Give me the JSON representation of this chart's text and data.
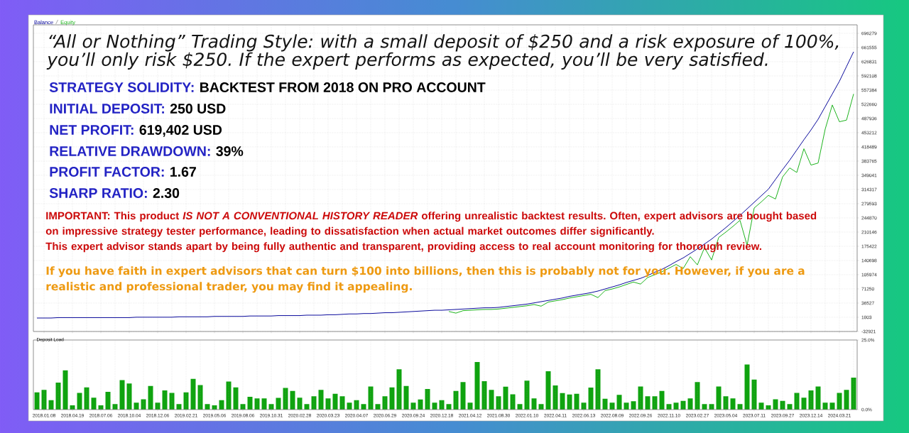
{
  "chart_data": [
    {
      "type": "line",
      "legend": "top left",
      "grid": true,
      "tick_labels": "y",
      "categories": [
        null,
        "2018.01.08",
        null,
        null,
        null,
        "2018.04.19",
        null,
        null,
        null,
        "2018.07.06",
        null,
        null,
        null,
        "2018.10.04",
        null,
        null,
        null,
        "2018.12.06",
        null,
        null,
        null,
        "2019.02.21",
        null,
        null,
        null,
        "2019.05.06",
        null,
        null,
        null,
        "2019.08.06",
        null,
        null,
        null,
        "2019.10.31",
        null,
        null,
        null,
        "2020.02.28",
        null,
        null,
        null,
        "2020.03.23",
        null,
        null,
        null,
        "2020.04.07",
        null,
        null,
        null,
        "2020.06.29",
        null,
        null,
        null,
        "2020.09.24",
        null,
        null,
        null,
        "2020.12.18",
        null,
        null,
        null,
        "2021.04.12",
        null,
        null,
        null,
        "2021.08.30",
        null,
        null,
        null,
        "2022.01.10",
        null,
        null,
        null,
        "2022.04.11",
        null,
        null,
        null,
        "2022.06.13",
        null,
        null,
        null,
        "2022.08.09",
        null,
        null,
        null,
        "2022.09.26",
        null,
        null,
        null,
        "2022.11.10",
        null,
        null,
        null,
        "2023.02.27",
        null,
        null,
        null,
        "2023.05.04",
        null,
        null,
        null,
        "2023.07.11",
        null,
        null,
        null,
        "2023.09.27",
        null,
        null,
        null,
        "2023.12.14",
        null,
        null,
        null,
        "2024.03.21",
        null,
        null
      ],
      "ylim": [
        -32921,
        717000
      ],
      "yticks": [
        696279,
        661555,
        626831,
        592108,
        557384,
        522660,
        487936,
        453212,
        418489,
        383765,
        349041,
        314317,
        279593,
        244870,
        210146,
        175422,
        140698,
        105974,
        71250,
        36527,
        1803,
        -32921
      ],
      "series": [
        {
          "name": "Balance",
          "color": "#0a0a9c",
          "values": [
            0,
            0,
            0,
            1000,
            1000,
            1000,
            1000,
            1000,
            1000,
            1000,
            1000,
            1000,
            1000,
            1000,
            2000,
            2000,
            2000,
            2000,
            2000,
            2000,
            3000,
            3000,
            3000,
            3000,
            3000,
            4000,
            4000,
            4000,
            4000,
            4000,
            5000,
            5000,
            5000,
            5000,
            6000,
            6000,
            6000,
            6000,
            7000,
            7000,
            7000,
            8000,
            8000,
            9000,
            10000,
            10000,
            11000,
            11000,
            12000,
            13000,
            13000,
            14000,
            15000,
            16000,
            17000,
            18000,
            19000,
            19000,
            20000,
            21000,
            22000,
            23000,
            24000,
            25000,
            25000,
            26000,
            28000,
            30000,
            32000,
            34000,
            37000,
            40000,
            43000,
            46000,
            49000,
            53000,
            56000,
            59000,
            62000,
            66000,
            71000,
            76000,
            81000,
            87000,
            92000,
            97000,
            104000,
            112000,
            119000,
            128000,
            138000,
            147000,
            158000,
            169000,
            181000,
            193000,
            207000,
            221000,
            236000,
            251000,
            267000,
            283000,
            299000,
            315000,
            339000,
            363000,
            386000,
            411000,
            436000,
            460000,
            486000,
            517000,
            548000,
            579000,
            615000,
            651000
          ]
        },
        {
          "name": "Equity",
          "color": "#1db31d",
          "values": [
            null,
            null,
            null,
            null,
            null,
            null,
            null,
            null,
            null,
            null,
            null,
            null,
            null,
            null,
            null,
            null,
            null,
            null,
            null,
            null,
            null,
            null,
            null,
            null,
            null,
            null,
            null,
            null,
            null,
            null,
            null,
            null,
            null,
            null,
            null,
            null,
            null,
            null,
            null,
            null,
            null,
            null,
            null,
            null,
            null,
            null,
            null,
            null,
            null,
            null,
            null,
            null,
            null,
            null,
            null,
            null,
            null,
            null,
            16000,
            12000,
            18000,
            19000,
            20000,
            21000,
            21000,
            22000,
            24000,
            26000,
            28000,
            30000,
            33000,
            29000,
            39000,
            42000,
            45000,
            49000,
            52000,
            55000,
            58000,
            50000,
            67000,
            71000,
            76000,
            82000,
            88000,
            83000,
            99000,
            106000,
            113000,
            122000,
            131000,
            121000,
            150000,
            130000,
            172000,
            142000,
            197000,
            210000,
            224000,
            239000,
            178000,
            269000,
            284000,
            300000,
            291000,
            345000,
            367000,
            356000,
            414000,
            374000,
            379000,
            462000,
            521000,
            480000,
            484000,
            548000
          ]
        }
      ],
      "annotations": [
        "“All or Nothing” Trading Style: with a small deposit of $250 and a risk exposure of 100%, you’ll only risk $250. If the expert performs as expected, you’ll be very satisfied.",
        "STRATEGY SOLIDITY:",
        "BACKTEST FROM 2018 ON PRO ACCOUNT",
        "INITIAL DEPOSIT:",
        "250 USD",
        "NET PROFIT:",
        "619,402 USD",
        "RELATIVE DRAWDOWN:",
        "39%",
        "PROFIT FACTOR:",
        "1.67",
        "SHARP RATIO:",
        "2.30",
        "IMPORTANT: This product *IS NOT A CONVENTIONAL HISTORY READER* offering unrealistic backtest results. Often, expert advisors are bought based on impressive strategy tester performance, leading to dissatisfaction when actual market outcomes differ significantly.",
        "This expert advisor stands apart by being fully authentic and transparent, providing access to real account monitoring for thorough review.",
        "If you have faith in expert advisors that can turn $100 into billions, then this is probably not for you. However, if you are a realistic and professional trader, you may find it appealing."
      ]
    },
    {
      "type": "bar",
      "title": "Deposit Load",
      "grid": "x",
      "color": "#0fa30f",
      "categories": [
        null,
        "2018.01.08",
        null,
        null,
        null,
        "2018.04.19",
        null,
        null,
        null,
        "2018.07.06",
        null,
        null,
        null,
        "2018.10.04",
        null,
        null,
        null,
        "2018.12.06",
        null,
        null,
        null,
        "2019.02.21",
        null,
        null,
        null,
        "2019.05.06",
        null,
        null,
        null,
        "2019.08.06",
        null,
        null,
        null,
        "2019.10.31",
        null,
        null,
        null,
        "2020.02.28",
        null,
        null,
        null,
        "2020.03.23",
        null,
        null,
        null,
        "2020.04.07",
        null,
        null,
        null,
        "2020.06.29",
        null,
        null,
        null,
        "2020.09.24",
        null,
        null,
        null,
        "2020.12.18",
        null,
        null,
        null,
        "2021.04.12",
        null,
        null,
        null,
        "2021.08.30",
        null,
        null,
        null,
        "2022.01.10",
        null,
        null,
        null,
        "2022.04.11",
        null,
        null,
        null,
        "2022.06.13",
        null,
        null,
        null,
        "2022.08.09",
        null,
        null,
        null,
        "2022.09.26",
        null,
        null,
        null,
        "2022.11.10",
        null,
        null,
        null,
        "2023.02.27",
        null,
        null,
        null,
        "2023.05.04",
        null,
        null,
        null,
        "2023.07.11",
        null,
        null,
        null,
        "2023.09.27",
        null,
        null,
        null,
        "2023.12.14",
        null,
        null,
        null,
        "2024.03.21",
        null,
        null
      ],
      "ylim": [
        0,
        25
      ],
      "yticks": [
        {
          "value": 25,
          "label": "25.0%"
        },
        {
          "value": 0,
          "label": "0.0%"
        }
      ],
      "values": [
        6.2,
        7.1,
        3.4,
        9.7,
        14.1,
        1.5,
        6.0,
        8.0,
        4.3,
        1.5,
        6.4,
        2.0,
        10.6,
        9.4,
        2.5,
        3.7,
        8.5,
        2.5,
        6.9,
        6.0,
        2.0,
        6.2,
        11.0,
        8.8,
        2.0,
        1.5,
        3.4,
        10.1,
        8.0,
        2.0,
        4.6,
        4.0,
        4.0,
        2.0,
        4.2,
        7.8,
        6.7,
        4.3,
        2.0,
        4.8,
        7.1,
        4.0,
        5.7,
        4.8,
        2.5,
        3.4,
        2.0,
        8.3,
        2.0,
        4.8,
        8.0,
        14.5,
        8.5,
        2.5,
        3.6,
        7.4,
        2.5,
        3.4,
        2.0,
        6.7,
        9.9,
        2.5,
        17.1,
        10.2,
        7.1,
        4.8,
        8.2,
        5.5,
        2.0,
        10.4,
        4.0,
        2.0,
        13.8,
        8.7,
        5.9,
        5.4,
        5.7,
        2.5,
        7.9,
        14.5,
        3.9,
        2.5,
        5.3,
        2.5,
        3.0,
        8.3,
        4.8,
        4.8,
        6.7,
        2.0,
        2.5,
        3.1,
        4.0,
        9.9,
        2.0,
        2.0,
        8.3,
        4.8,
        4.0,
        2.0,
        16.2,
        10.8,
        2.5,
        1.5,
        3.7,
        3.1,
        2.0,
        6.0,
        4.3,
        6.9,
        8.3,
        2.5,
        2.5,
        6.0,
        7.1,
        11.5
      ]
    }
  ]
}
